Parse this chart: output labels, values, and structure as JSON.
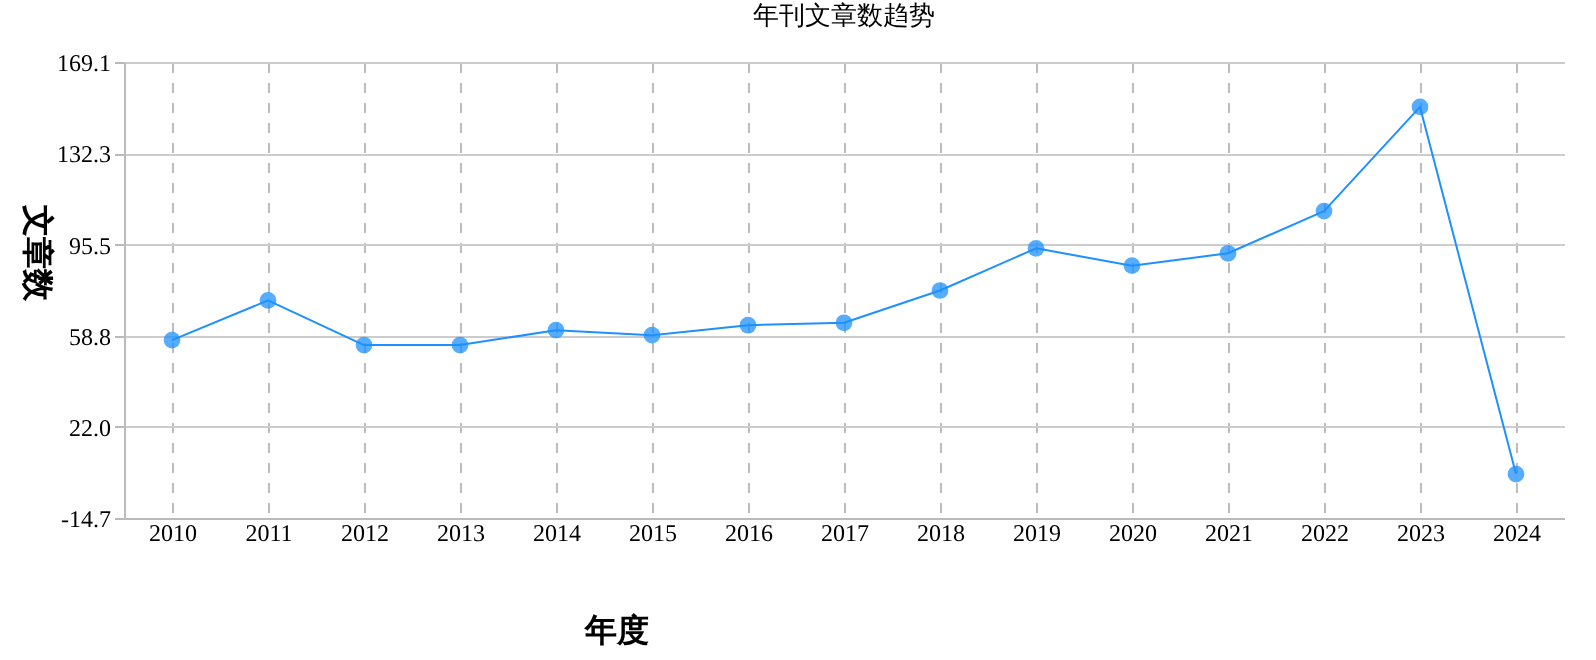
{
  "chart_data": {
    "type": "line",
    "title": "年刊文章数趋势",
    "xlabel": "年度",
    "ylabel": "文章数",
    "categories": [
      "2010",
      "2011",
      "2012",
      "2013",
      "2014",
      "2015",
      "2016",
      "2017",
      "2018",
      "2019",
      "2020",
      "2021",
      "2022",
      "2023",
      "2024"
    ],
    "series": [
      {
        "color": "#1e90ff",
        "values": [
          57,
          73,
          55,
          55,
          61,
          59,
          63,
          64,
          77,
          94,
          87,
          92,
          109,
          151,
          3
        ]
      }
    ],
    "ylim": [
      -14.7,
      169.1
    ],
    "yticks": [
      -14.7,
      {
        "value": 22,
        "label": "22.0"
      },
      58.8,
      95.5,
      132.3,
      169.1
    ],
    "grid": true,
    "marker": "circle",
    "line_style": "solid"
  }
}
